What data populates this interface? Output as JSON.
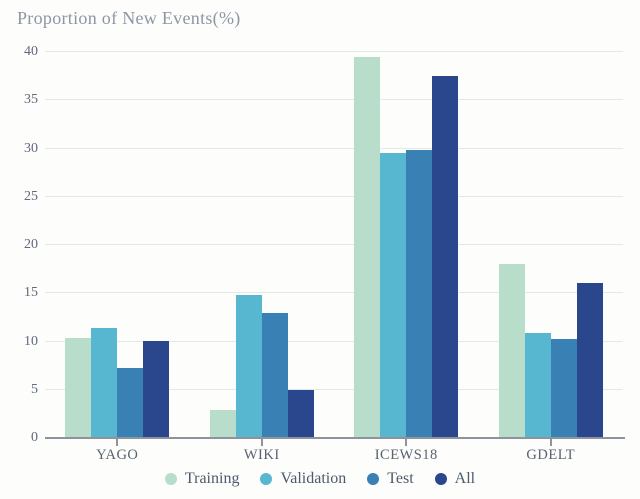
{
  "chart_data": {
    "type": "bar",
    "title": "Proportion of New Events(%)",
    "categories": [
      "YAGO",
      "WIKI",
      "ICEWS18",
      "GDELT"
    ],
    "series": [
      {
        "name": "Training",
        "color": "#b8ddca",
        "values": [
          10.4,
          2.9,
          39.5,
          18.0
        ]
      },
      {
        "name": "Validation",
        "color": "#57b7d1",
        "values": [
          11.4,
          14.8,
          29.5,
          10.9
        ]
      },
      {
        "name": "Test",
        "color": "#3981b5",
        "values": [
          7.3,
          13.0,
          29.8,
          10.3
        ]
      },
      {
        "name": "All",
        "color": "#2a478d",
        "values": [
          10.1,
          5.0,
          37.5,
          16.1
        ]
      }
    ],
    "xlabel": "",
    "ylabel": "",
    "ylim": [
      0,
      40
    ],
    "yticks": [
      0,
      5,
      10,
      15,
      20,
      25,
      30,
      35,
      40
    ],
    "grid": true,
    "legend_position": "bottom",
    "colors": {
      "gridline": "#e0eae6",
      "axis_line": "#8d949c",
      "tick_label": "#5e6a79",
      "title_text": "#8d96a3",
      "legend_text": "#4c5a6b",
      "background": "#fdfdfc"
    }
  }
}
